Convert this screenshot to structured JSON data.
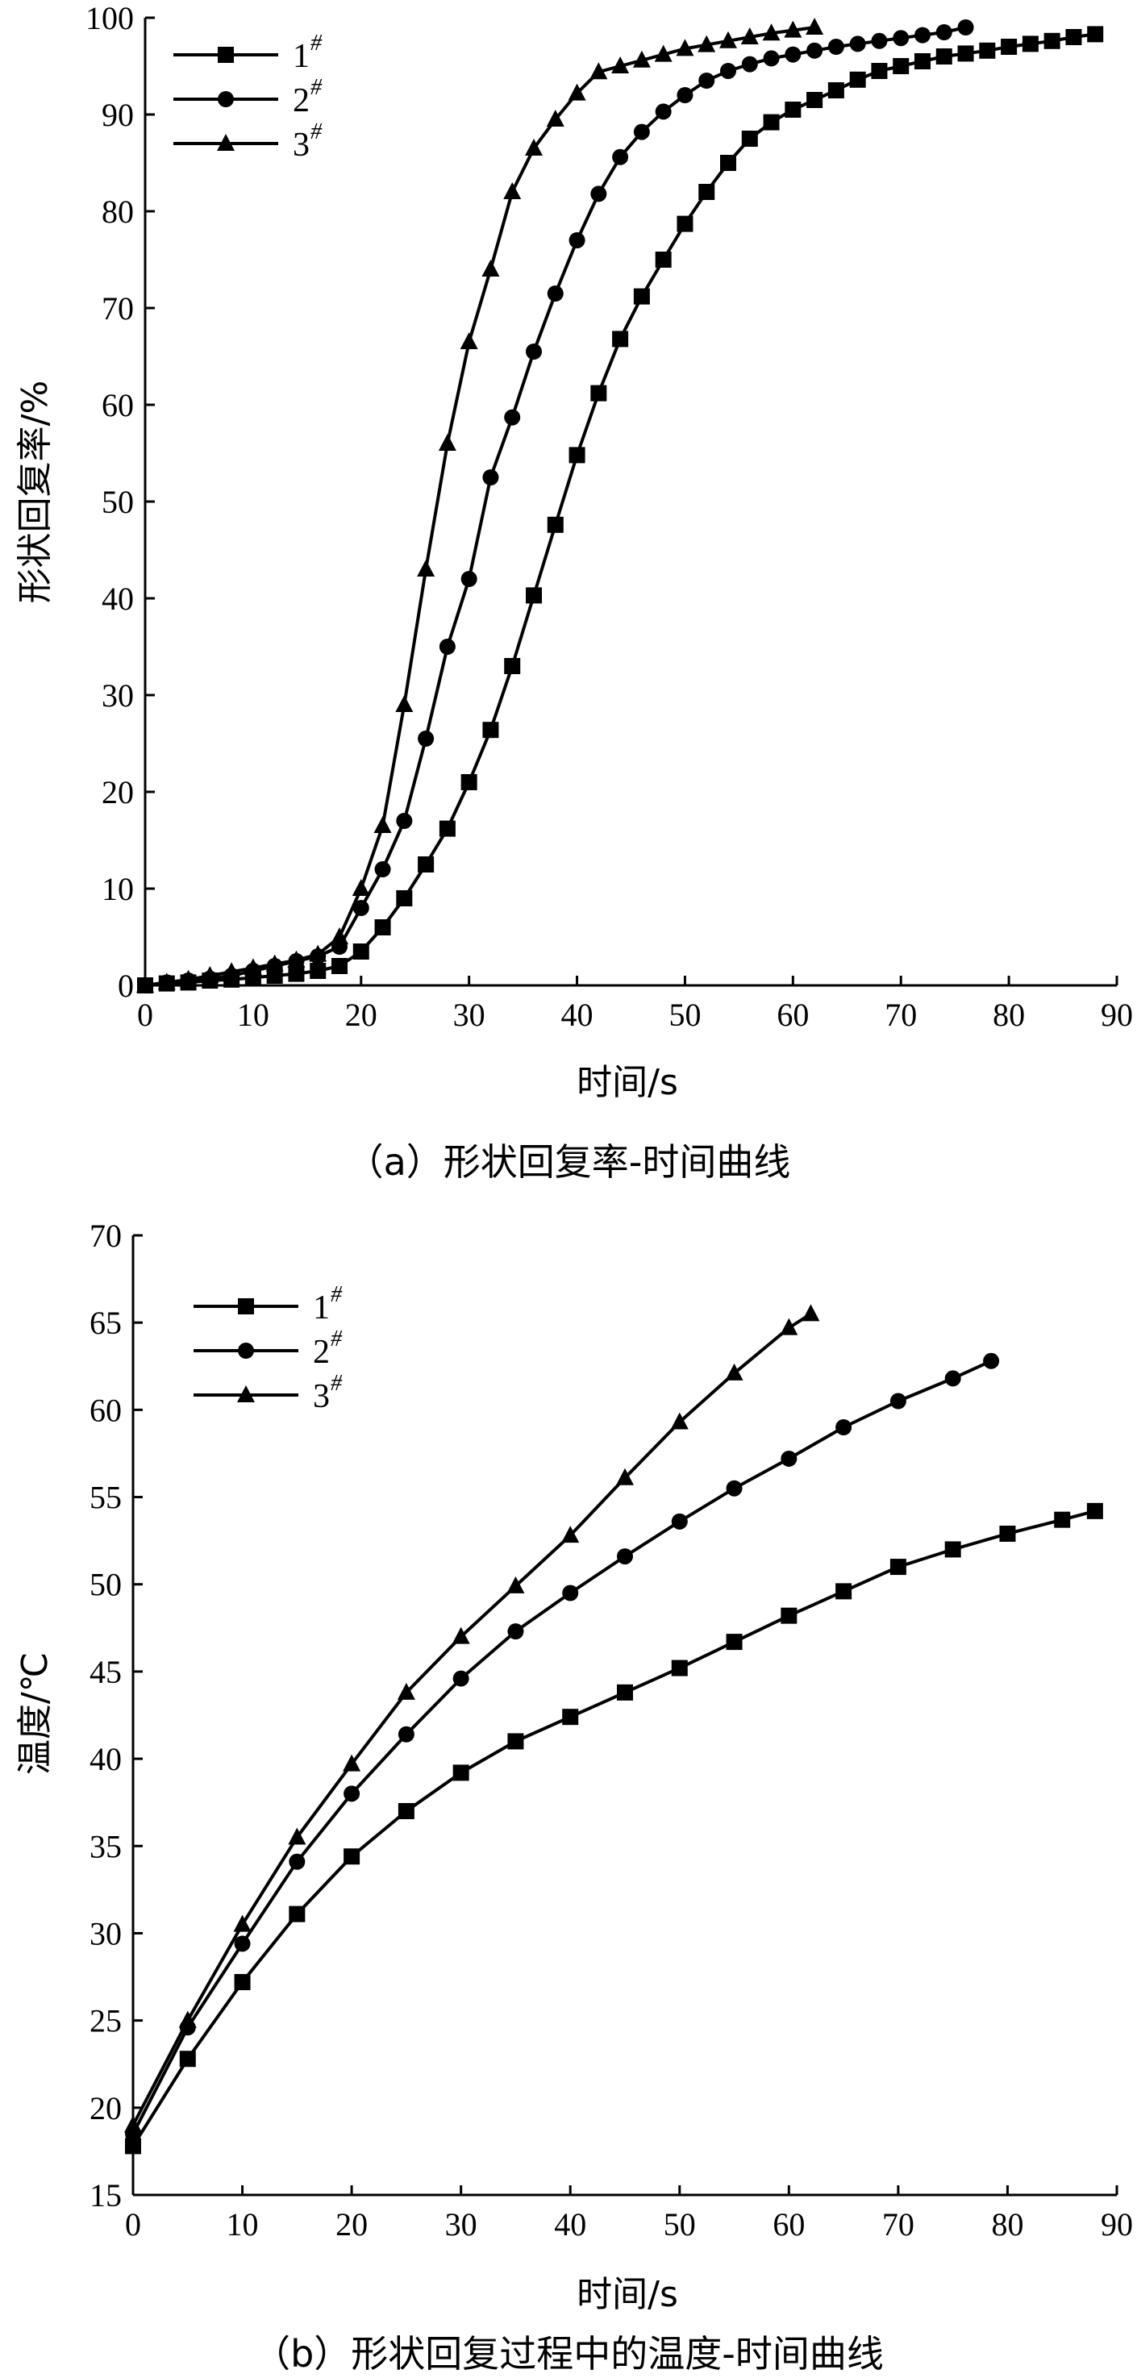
{
  "chart_data": [
    {
      "type": "line",
      "caption": "（a）形状回复率-时间曲线",
      "xlabel": "时间/s",
      "ylabel": "形状回复率/%",
      "xlim": [
        0,
        90
      ],
      "ylim": [
        0,
        100
      ],
      "xticks": [
        "0",
        "10",
        "20",
        "30",
        "40",
        "50",
        "60",
        "70",
        "80",
        "90"
      ],
      "yticks": [
        "0",
        "10",
        "20",
        "30",
        "40",
        "50",
        "60",
        "70",
        "80",
        "90",
        "100"
      ],
      "legend_position": "top-left",
      "grid": false,
      "series": [
        {
          "name": "1",
          "name_sup": "#",
          "marker": "square",
          "x": [
            0,
            2,
            4,
            6,
            8,
            10,
            12,
            14,
            16,
            18,
            20,
            22,
            24,
            26,
            28,
            30,
            32,
            34,
            36,
            38,
            40,
            42,
            44,
            46,
            48,
            50,
            52,
            54,
            56,
            58,
            60,
            62,
            64,
            66,
            68,
            70,
            72,
            74,
            76,
            78,
            80,
            82,
            84,
            86,
            88
          ],
          "y": [
            0,
            0.2,
            0.3,
            0.5,
            0.6,
            0.8,
            1.0,
            1.2,
            1.5,
            2.0,
            3.5,
            6.0,
            9.0,
            12.5,
            16.2,
            21.0,
            26.4,
            33.0,
            40.3,
            47.6,
            54.8,
            61.2,
            66.8,
            71.2,
            75.0,
            78.7,
            82.0,
            85.0,
            87.5,
            89.2,
            90.5,
            91.5,
            92.5,
            93.6,
            94.5,
            95.0,
            95.5,
            96.0,
            96.3,
            96.6,
            97.0,
            97.3,
            97.6,
            98.0,
            98.3
          ]
        },
        {
          "name": "2",
          "name_sup": "#",
          "marker": "circle",
          "x": [
            0,
            2,
            4,
            6,
            8,
            10,
            12,
            14,
            16,
            18,
            20,
            22,
            24,
            26,
            28,
            30,
            32,
            34,
            36,
            38,
            40,
            42,
            44,
            46,
            48,
            50,
            52,
            54,
            56,
            58,
            60,
            62,
            64,
            66,
            68,
            70,
            72,
            74,
            76
          ],
          "y": [
            0,
            0.3,
            0.5,
            0.7,
            1.0,
            1.5,
            2.0,
            2.5,
            3.0,
            4.0,
            8.0,
            12.0,
            17.0,
            25.5,
            35.0,
            42.0,
            52.5,
            58.7,
            65.5,
            71.5,
            77.0,
            81.8,
            85.6,
            88.2,
            90.3,
            92.0,
            93.5,
            94.5,
            95.2,
            95.8,
            96.2,
            96.6,
            97.0,
            97.3,
            97.6,
            97.9,
            98.2,
            98.5,
            99.0
          ]
        },
        {
          "name": "3",
          "name_sup": "#",
          "marker": "triangle",
          "x": [
            0,
            2,
            4,
            6,
            8,
            10,
            12,
            14,
            16,
            18,
            20,
            22,
            24,
            26,
            28,
            30,
            32,
            34,
            36,
            38,
            40,
            42,
            44,
            46,
            48,
            50,
            52,
            54,
            56,
            58,
            60,
            62
          ],
          "y": [
            0,
            0.3,
            0.6,
            1.0,
            1.4,
            1.8,
            2.2,
            2.6,
            3.2,
            5.0,
            10.0,
            16.5,
            29.0,
            43.0,
            56.0,
            66.5,
            74.0,
            82.0,
            86.5,
            89.5,
            92.2,
            94.4,
            95.0,
            95.6,
            96.2,
            96.8,
            97.2,
            97.6,
            98.0,
            98.4,
            98.7,
            99.0
          ]
        }
      ]
    },
    {
      "type": "line",
      "caption": "（b）形状回复过程中的温度-时间曲线",
      "xlabel": "时间/s",
      "ylabel": "温度/℃",
      "xlim": [
        0,
        90
      ],
      "ylim": [
        15,
        70
      ],
      "xticks": [
        "0",
        "10",
        "20",
        "30",
        "40",
        "50",
        "60",
        "70",
        "80",
        "90"
      ],
      "yticks": [
        "15",
        "20",
        "25",
        "30",
        "35",
        "40",
        "45",
        "50",
        "55",
        "60",
        "65",
        "70"
      ],
      "legend_position": "top-left",
      "grid": false,
      "series": [
        {
          "name": "1",
          "name_sup": "#",
          "marker": "square",
          "x": [
            0,
            5,
            10,
            15,
            20,
            25,
            30,
            35,
            40,
            45,
            50,
            55,
            60,
            65,
            70,
            75,
            80,
            85,
            88
          ],
          "y": [
            17.8,
            22.8,
            27.2,
            31.1,
            34.4,
            37.0,
            39.2,
            41.0,
            42.4,
            43.8,
            45.2,
            46.7,
            48.2,
            49.6,
            51.0,
            52.0,
            52.9,
            53.7,
            54.2
          ]
        },
        {
          "name": "2",
          "name_sup": "#",
          "marker": "circle",
          "x": [
            0,
            5,
            10,
            15,
            20,
            25,
            30,
            35,
            40,
            45,
            50,
            55,
            60,
            65,
            70,
            75,
            78.5
          ],
          "y": [
            18.5,
            24.6,
            29.4,
            34.1,
            38.0,
            41.4,
            44.6,
            47.3,
            49.5,
            51.6,
            53.6,
            55.5,
            57.2,
            59.0,
            60.5,
            61.8,
            62.8
          ]
        },
        {
          "name": "3",
          "name_sup": "#",
          "marker": "triangle",
          "x": [
            0,
            5,
            10,
            15,
            20,
            25,
            30,
            35,
            40,
            45,
            50,
            55,
            60,
            62
          ],
          "y": [
            19.0,
            25.0,
            30.5,
            35.5,
            39.7,
            43.8,
            47.0,
            49.9,
            52.8,
            56.1,
            59.3,
            62.1,
            64.7,
            65.5
          ]
        }
      ]
    }
  ]
}
